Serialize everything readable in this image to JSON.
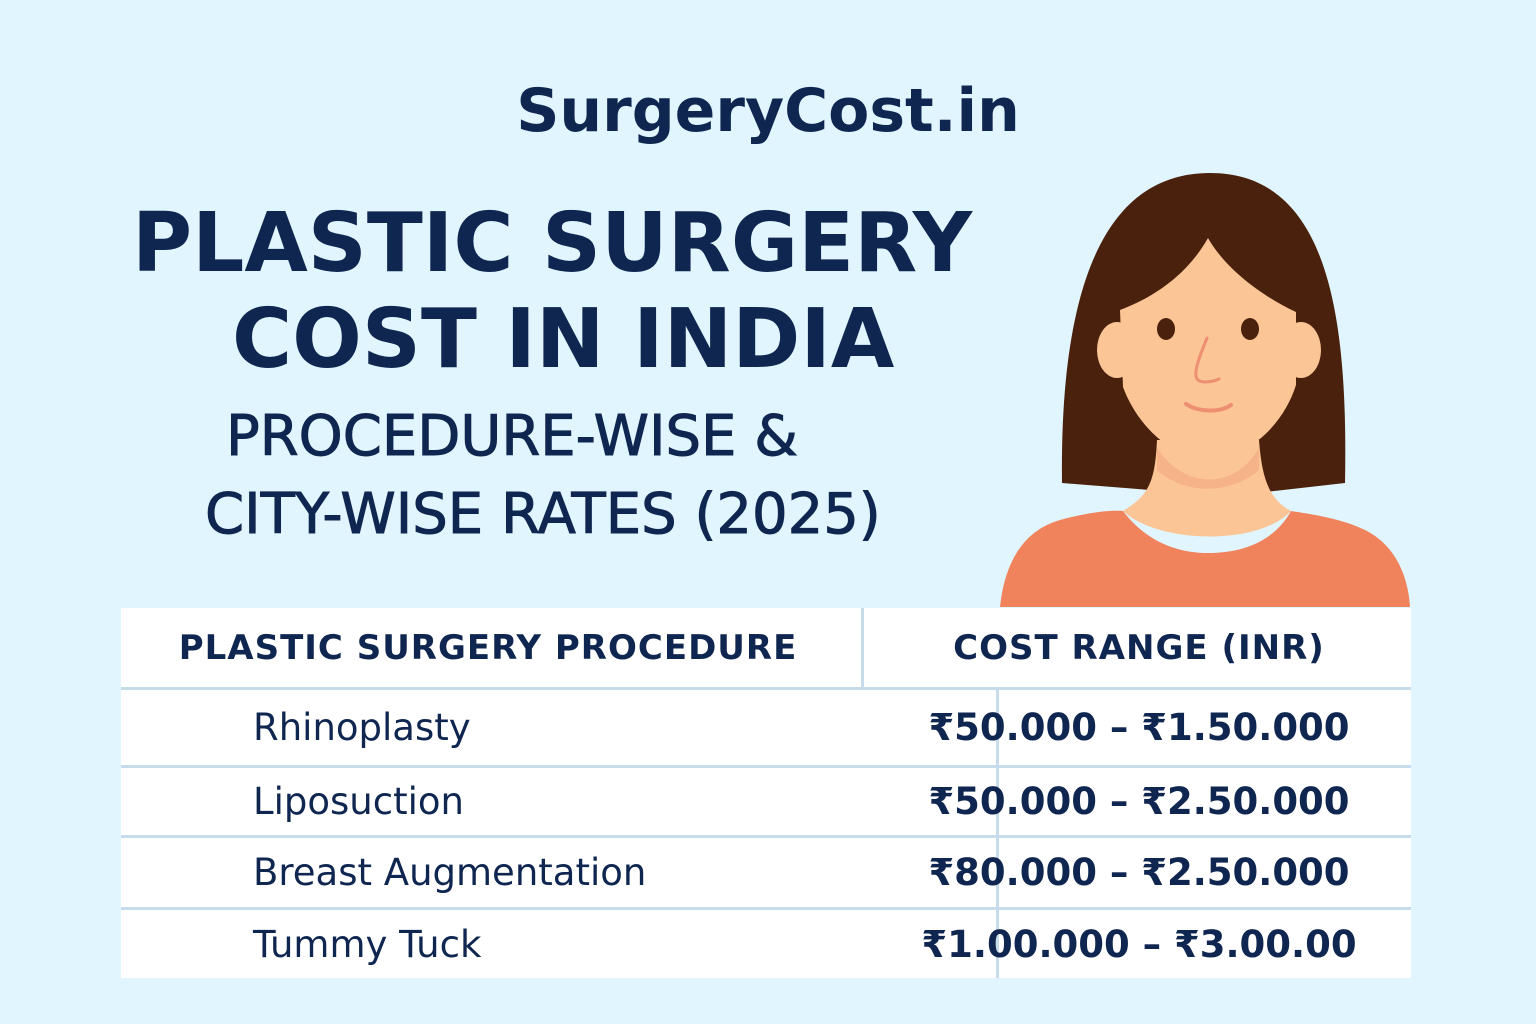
{
  "brand": "SurgeryCost.in",
  "title": {
    "line1": "PLASTIC SURGERY",
    "line2": "COST IN INDIA",
    "line3": "PROCEDURE-WISE &",
    "line4": "CITY-WISE RATES (2025)"
  },
  "illustration": "woman-portrait",
  "colors": {
    "background": "#e0f5fd",
    "text": "#0f2650",
    "hair": "#4a210c",
    "skin": "#fbc596",
    "shirt": "#f0825c"
  },
  "table": {
    "headers": [
      "PLASTIC SURGERY PROCEDURE",
      "COST RANGE (INR)"
    ],
    "rows": [
      {
        "procedure": "Rhinoplasty",
        "cost": "₹50.000 – ₹1.50.000"
      },
      {
        "procedure": "Liposuction",
        "cost": "₹50.000 – ₹2.50.000"
      },
      {
        "procedure": "Breast Augmentation",
        "cost": "₹80.000 – ₹2.50.000"
      },
      {
        "procedure": "Tummy Tuck",
        "cost": "₹1.00.000 – ₹3.00.00"
      }
    ]
  }
}
